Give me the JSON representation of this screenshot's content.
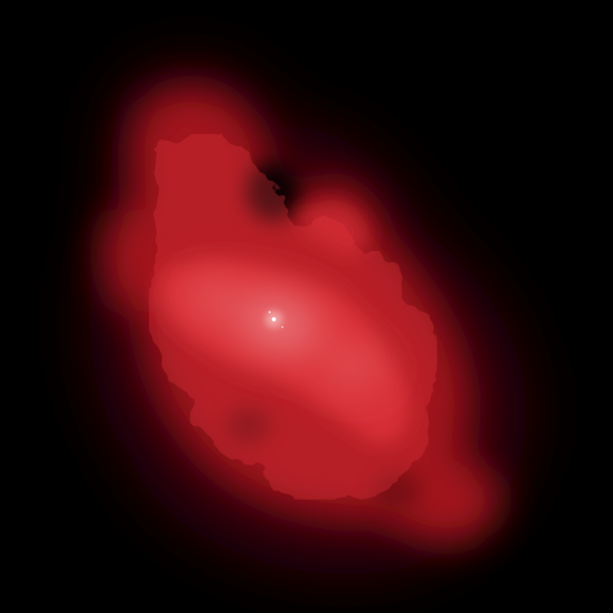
{
  "image": {
    "subject": "red-nebula",
    "colors": {
      "background": "#000000",
      "outer_glow": "#3a0508",
      "mid_glow": "#a8141c",
      "bright_glow": "#e0343c",
      "core_highlight": "#f3b0b0",
      "central_star": "#ffffff"
    }
  }
}
